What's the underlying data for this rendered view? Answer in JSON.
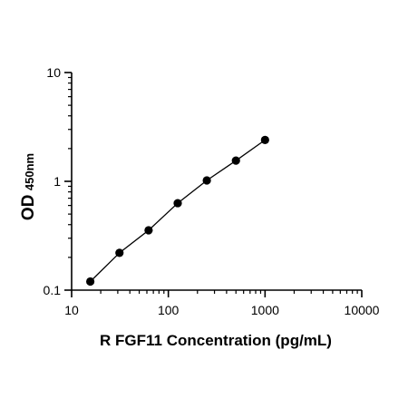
{
  "chart_data": {
    "type": "scatter",
    "title": "",
    "xlabel": "R FGF11 Concentration (pg/mL)",
    "ylabel": {
      "main": "OD",
      "subscript": "450nm"
    },
    "xscale": "log",
    "yscale": "log",
    "xlim": [
      10,
      10000
    ],
    "ylim": [
      0.1,
      10
    ],
    "x_ticks": [
      10,
      100,
      1000,
      10000
    ],
    "x_tick_labels": [
      "10",
      "100",
      "1000",
      "10000"
    ],
    "y_ticks": [
      0.1,
      1,
      10
    ],
    "y_tick_labels": [
      "0.1",
      "1",
      "10"
    ],
    "grid": false,
    "legend": "none",
    "series": [
      {
        "x": [
          15.6,
          31.25,
          62.5,
          125,
          250,
          500,
          1000
        ],
        "y": [
          0.12,
          0.22,
          0.355,
          0.63,
          1.02,
          1.55,
          2.4
        ],
        "fit_line": true,
        "color": "#000000"
      }
    ]
  }
}
